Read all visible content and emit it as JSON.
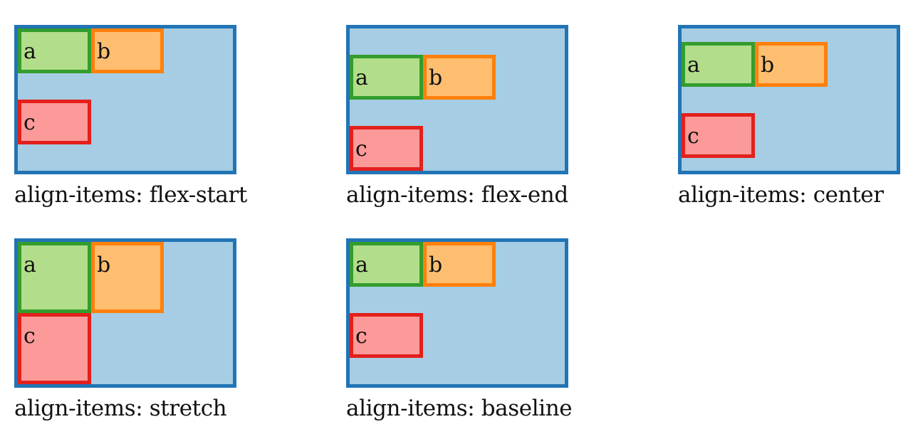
{
  "colors": {
    "container_border": "#2274b5",
    "container_fill": "#a6cde3",
    "item_a_fill": "#b2de8b",
    "item_a_border": "#339d2d",
    "item_b_fill": "#fdbe70",
    "item_b_border": "#ff800c",
    "item_c_fill": "#fb9a99",
    "item_c_border": "#e3201c"
  },
  "panels": [
    {
      "caption": "align-items: flex-start",
      "items": [
        "a",
        "b",
        "c"
      ]
    },
    {
      "caption": "align-items: flex-end",
      "items": [
        "a",
        "b",
        "c"
      ]
    },
    {
      "caption": "align-items: center",
      "items": [
        "a",
        "b",
        "c"
      ]
    },
    {
      "caption": "align-items: stretch",
      "items": [
        "a",
        "b",
        "c"
      ]
    },
    {
      "caption": "align-items: baseline",
      "items": [
        "a",
        "b",
        "c"
      ]
    }
  ]
}
